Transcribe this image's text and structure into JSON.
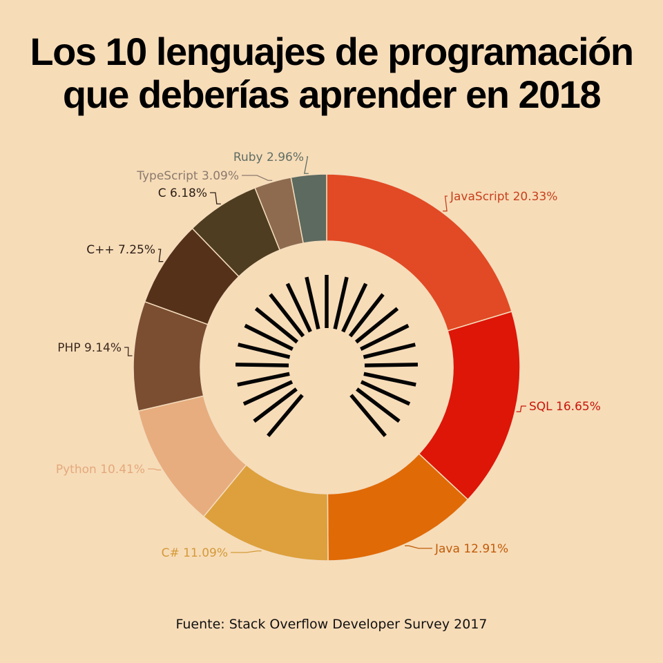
{
  "title": {
    "line1": "Los 10 lenguajes de programación",
    "line2": "que deberías aprender en 2018"
  },
  "source": "Fuente: Stack Overflow Developer Survey 2017",
  "chart_data": {
    "type": "pie",
    "style": "donut",
    "unit": "%",
    "slices": [
      {
        "label": "JavaScript",
        "value": 20.33,
        "display": "JavaScript 20.33%",
        "color": "#e14a24"
      },
      {
        "label": "SQL",
        "value": 16.65,
        "display": "SQL 16.65%",
        "color": "#dd1608"
      },
      {
        "label": "Java",
        "value": 12.91,
        "display": "Java 12.91%",
        "color": "#e06a06"
      },
      {
        "label": "C#",
        "value": 11.09,
        "display": "C# 11.09%",
        "color": "#dda03c"
      },
      {
        "label": "Python",
        "value": 10.41,
        "display": "Python 10.41%",
        "color": "#e7ad7e"
      },
      {
        "label": "PHP",
        "value": 9.14,
        "display": "PHP 9.14%",
        "color": "#7b4e32"
      },
      {
        "label": "C++",
        "value": 7.25,
        "display": "C++ 7.25%",
        "color": "#55311a"
      },
      {
        "label": "C",
        "value": 6.18,
        "display": "C 6.18%",
        "color": "#4e3d20"
      },
      {
        "label": "TypeScript",
        "value": 3.09,
        "display": "TypeScript 3.09%",
        "color": "#8e6b4f"
      },
      {
        "label": "Ruby",
        "value": 2.96,
        "display": "Ruby 2.96%",
        "color": "#5c6a5f"
      }
    ],
    "label_colors": [
      "#c8401c",
      "#c8150a",
      "#c05c08",
      "#d39a39",
      "#e3a97b",
      "#3b2a1f",
      "#2a1e16",
      "#2a1e16",
      "#8a7a6d",
      "#5f6e64"
    ],
    "center_icon": "sunburst-icon"
  }
}
